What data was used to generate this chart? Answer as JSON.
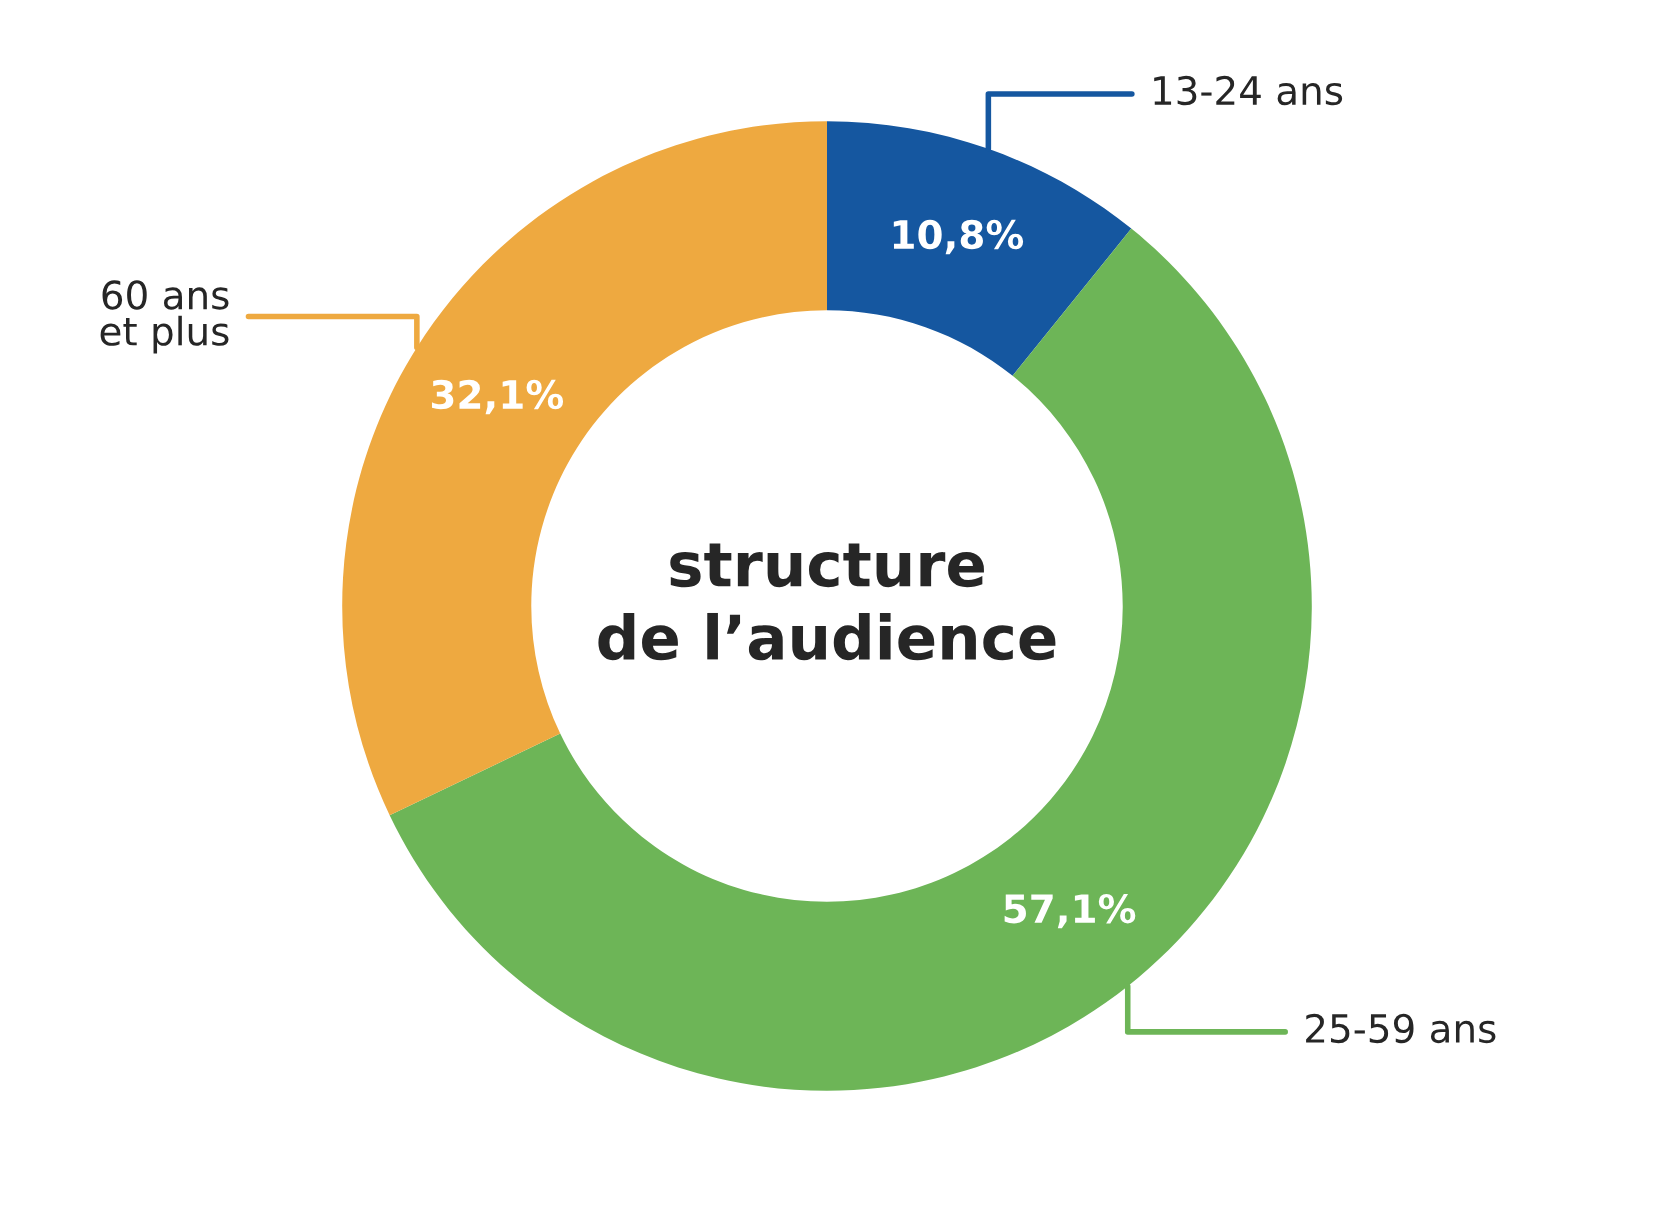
{
  "chart_data": {
    "type": "donut",
    "title": "structure\nde l’audience",
    "categories": [
      "13-24 ans",
      "25-59 ans",
      "60 ans\net plus"
    ],
    "values": [
      10.8,
      57.1,
      32.1
    ],
    "value_labels": [
      "10,8%",
      "57,1%",
      "32,1%"
    ],
    "colors": [
      "#1557a0",
      "#6db557",
      "#eea940"
    ],
    "legend": false
  }
}
